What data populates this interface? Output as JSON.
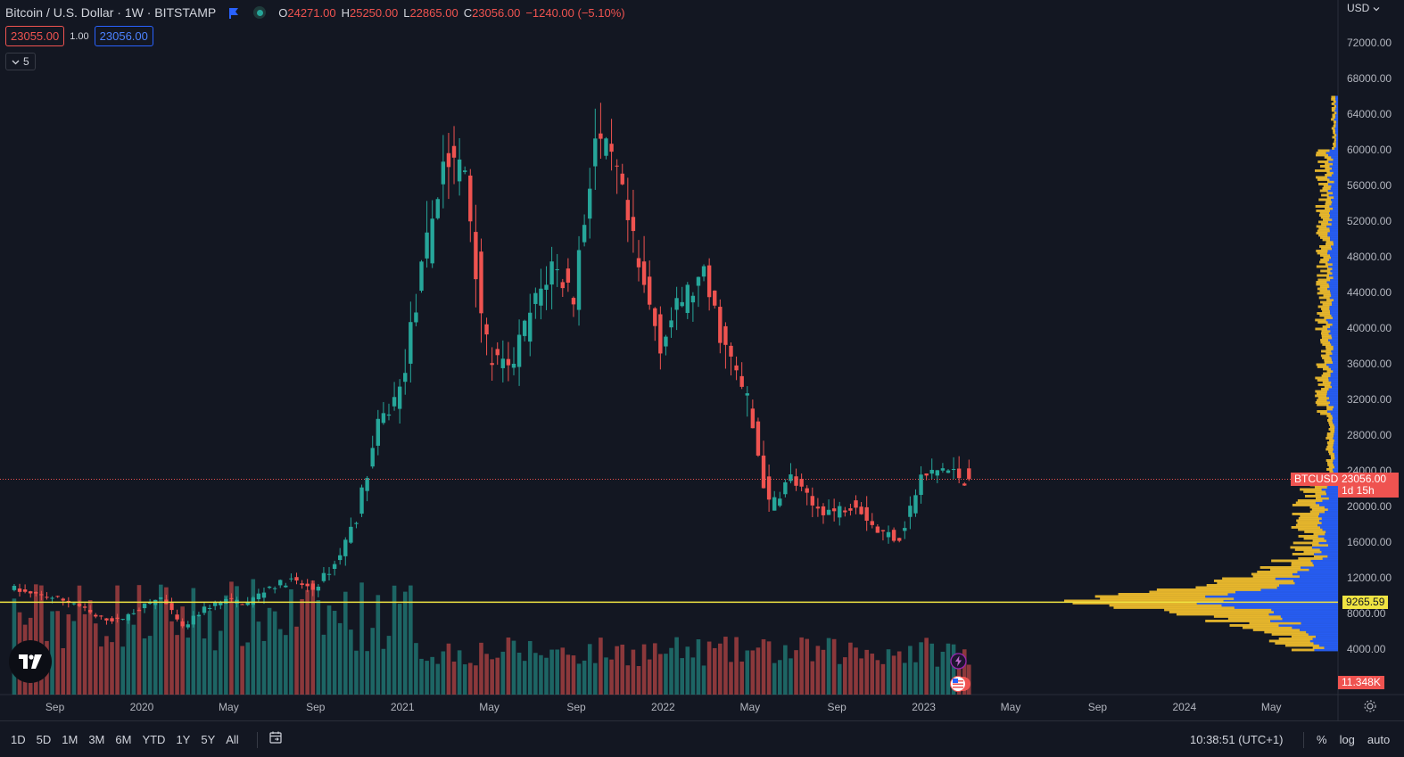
{
  "header": {
    "title": "Bitcoin / U.S. Dollar · 1W · BITSTAMP",
    "ohlc": [
      {
        "label": "O",
        "value": "24271.00"
      },
      {
        "label": "H",
        "value": "25250.00"
      },
      {
        "label": "L",
        "value": "22865.00"
      },
      {
        "label": "C",
        "value": "23056.00"
      }
    ],
    "change": "−1240.00 (−5.10%)"
  },
  "trade": {
    "sell": "23055.00",
    "spread": "1.00",
    "buy": "23056.00"
  },
  "indicators": {
    "count": "5"
  },
  "axis": {
    "currency": "USD",
    "price_labels": [
      "72000.00",
      "68000.00",
      "64000.00",
      "60000.00",
      "56000.00",
      "52000.00",
      "48000.00",
      "44000.00",
      "40000.00",
      "36000.00",
      "32000.00",
      "28000.00",
      "24000.00",
      "20000.00",
      "16000.00",
      "12000.00",
      "8000.00",
      "4000.00"
    ],
    "symbol_tag": "BTCUSD",
    "last_price": "23056.00",
    "countdown": "1d 15h",
    "poc_price": "9265.59",
    "volume_tag": "11.348K"
  },
  "time_labels": [
    "Sep",
    "2020",
    "May",
    "Sep",
    "2021",
    "May",
    "Sep",
    "2022",
    "May",
    "Sep",
    "2023",
    "May",
    "Sep",
    "2024",
    "May"
  ],
  "toolbar": {
    "timeframes": [
      "1D",
      "5D",
      "1M",
      "3M",
      "6M",
      "YTD",
      "1Y",
      "5Y",
      "All"
    ],
    "clock": "10:38:51 (UTC+1)",
    "percent": "%",
    "log": "log",
    "auto": "auto"
  },
  "colors": {
    "up": "#26a69a",
    "down": "#ef5350",
    "poc": "#f0e442",
    "vp_up": "#2962ff",
    "vp_down": "#f5c12e"
  },
  "chart_data": {
    "type": "candlestick",
    "symbol": "BTCUSD",
    "interval": "1W",
    "ylim": [
      4000,
      72000
    ],
    "x_range": [
      "2019-07",
      "2024-07"
    ],
    "poc": 9265.59,
    "last": 23056.0,
    "weekly_close_path": [
      {
        "date": "2019-07",
        "close": 11000
      },
      {
        "date": "2019-08",
        "close": 10100
      },
      {
        "date": "2019-09",
        "close": 9800
      },
      {
        "date": "2019-10",
        "close": 9200
      },
      {
        "date": "2019-11",
        "close": 7600
      },
      {
        "date": "2019-12",
        "close": 7200
      },
      {
        "date": "2020-01",
        "close": 8500
      },
      {
        "date": "2020-02",
        "close": 9800
      },
      {
        "date": "2020-03",
        "close": 6300
      },
      {
        "date": "2020-04",
        "close": 8600
      },
      {
        "date": "2020-05",
        "close": 9500
      },
      {
        "date": "2020-06",
        "close": 9200
      },
      {
        "date": "2020-07",
        "close": 11000
      },
      {
        "date": "2020-08",
        "close": 11700
      },
      {
        "date": "2020-09",
        "close": 10700
      },
      {
        "date": "2020-10",
        "close": 13500
      },
      {
        "date": "2020-11",
        "close": 18800
      },
      {
        "date": "2020-12",
        "close": 28900
      },
      {
        "date": "2021-01",
        "close": 33000
      },
      {
        "date": "2021-02",
        "close": 46000
      },
      {
        "date": "2021-03",
        "close": 58800
      },
      {
        "date": "2021-04",
        "close": 57700
      },
      {
        "date": "2021-05",
        "close": 37300
      },
      {
        "date": "2021-06",
        "close": 35000
      },
      {
        "date": "2021-07",
        "close": 41500
      },
      {
        "date": "2021-08",
        "close": 47100
      },
      {
        "date": "2021-09",
        "close": 43800
      },
      {
        "date": "2021-10",
        "close": 61300
      },
      {
        "date": "2021-11",
        "close": 57000
      },
      {
        "date": "2021-12",
        "close": 46300
      },
      {
        "date": "2022-01",
        "close": 38500
      },
      {
        "date": "2022-02",
        "close": 43200
      },
      {
        "date": "2022-03",
        "close": 45500
      },
      {
        "date": "2022-04",
        "close": 37700
      },
      {
        "date": "2022-05",
        "close": 31800
      },
      {
        "date": "2022-06",
        "close": 19900
      },
      {
        "date": "2022-07",
        "close": 23300
      },
      {
        "date": "2022-08",
        "close": 20000
      },
      {
        "date": "2022-09",
        "close": 19400
      },
      {
        "date": "2022-10",
        "close": 20500
      },
      {
        "date": "2022-11",
        "close": 17200
      },
      {
        "date": "2022-12",
        "close": 16500
      },
      {
        "date": "2023-01",
        "close": 23100
      },
      {
        "date": "2023-02",
        "close": 24300
      },
      {
        "date": "2023-03",
        "close": 23056
      }
    ]
  }
}
